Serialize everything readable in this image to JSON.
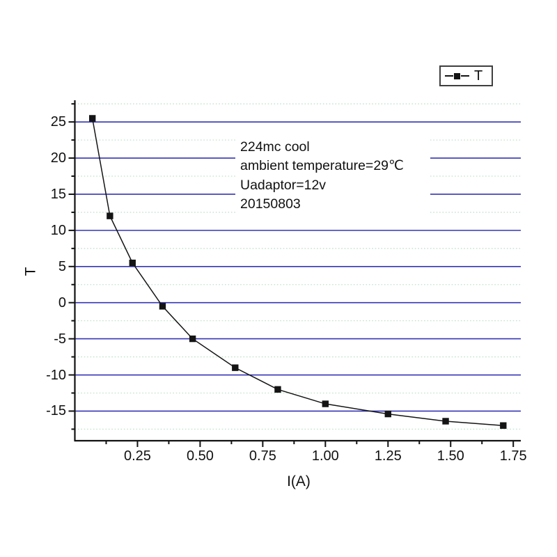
{
  "chart_data": {
    "type": "line",
    "title": "",
    "xlabel": "I(A)",
    "ylabel": "T",
    "xlim": [
      0,
      1.78
    ],
    "ylim": [
      -19.1,
      28.0
    ],
    "series": [
      {
        "name": "T",
        "x": [
          0.07,
          0.14,
          0.23,
          0.35,
          0.47,
          0.64,
          0.81,
          1.0,
          1.25,
          1.48,
          1.71
        ],
        "y": [
          25.5,
          12.0,
          5.5,
          -0.5,
          -5.0,
          -9.0,
          -12.0,
          -14.0,
          -15.4,
          -16.4,
          -17.0
        ]
      }
    ],
    "x_major_ticks": [
      0.25,
      0.5,
      0.75,
      1.0,
      1.25,
      1.5,
      1.75
    ],
    "x_tick_labels": [
      "0.25",
      "0.50",
      "0.75",
      "1.00",
      "1.25",
      "1.50",
      "1.75"
    ],
    "x_minor_ticks": [
      0.125,
      0.375,
      0.625,
      0.875,
      1.125,
      1.375,
      1.625
    ],
    "y_major_ticks": [
      25,
      20,
      15,
      10,
      5,
      0,
      -5,
      -10,
      -15
    ],
    "y_tick_labels": [
      "25",
      "20",
      "15",
      "10",
      "5",
      "0",
      "-5",
      "-10",
      "-15"
    ],
    "y_minor_ticks": [
      27.5,
      22.5,
      17.5,
      12.5,
      7.5,
      2.5,
      -2.5,
      -7.5,
      -12.5,
      -17.5
    ],
    "grid": {
      "major_horizontal": true,
      "minor_horizontal": true,
      "vertical": false
    },
    "legend": {
      "label": "T",
      "position": "top-right"
    },
    "colors": {
      "major_grid": "#3434b4",
      "minor_grid": "#bfe2cb",
      "line": "#141414",
      "marker": "#141414",
      "axis": "#111111"
    },
    "marker_shape": "square"
  },
  "annotation": {
    "lines": [
      "224mc cool",
      "ambient temperature=29℃",
      "Uadaptor=12v",
      "20150803"
    ]
  }
}
